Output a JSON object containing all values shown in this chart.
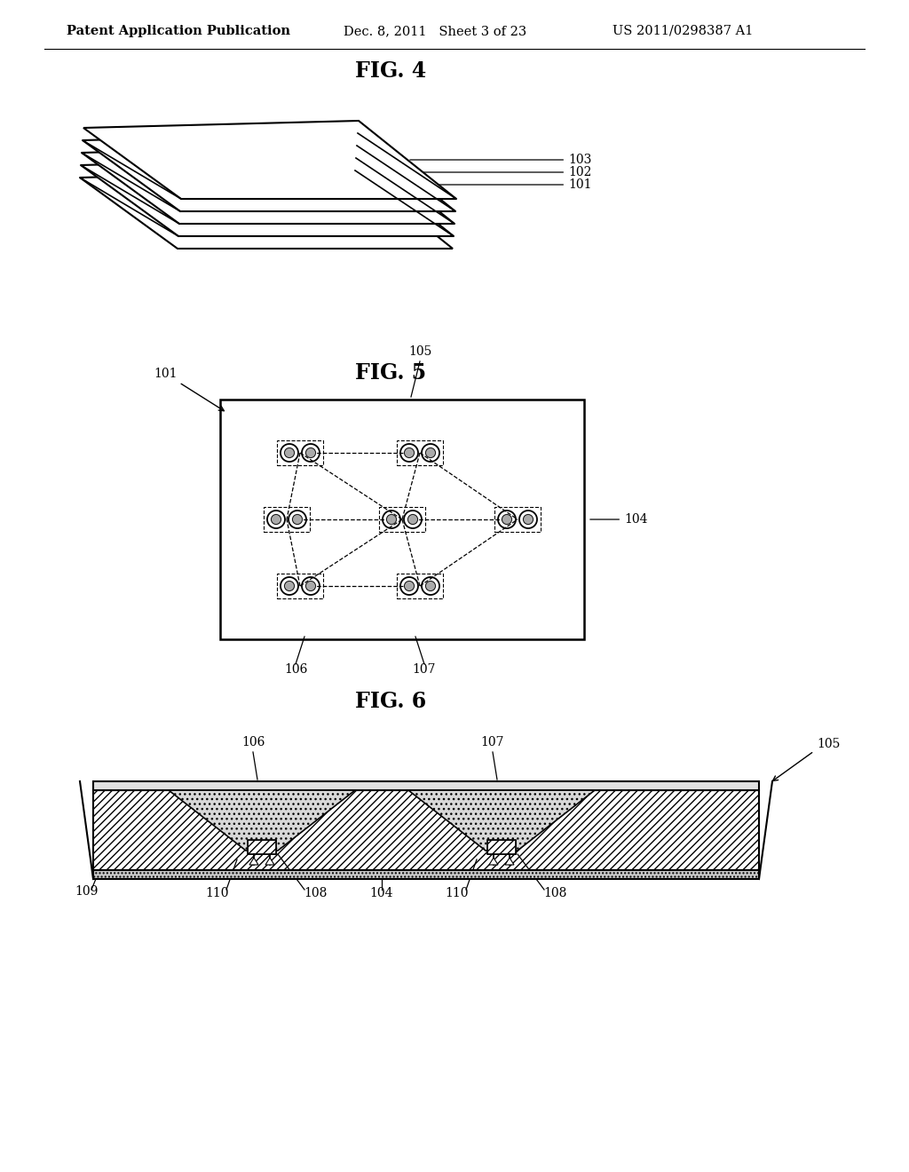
{
  "header_left": "Patent Application Publication",
  "header_mid": "Dec. 8, 2011   Sheet 3 of 23",
  "header_right": "US 2011/0298387 A1",
  "fig4_title": "FIG. 4",
  "fig5_title": "FIG. 5",
  "fig6_title": "FIG. 6",
  "background": "#ffffff",
  "line_color": "#000000"
}
